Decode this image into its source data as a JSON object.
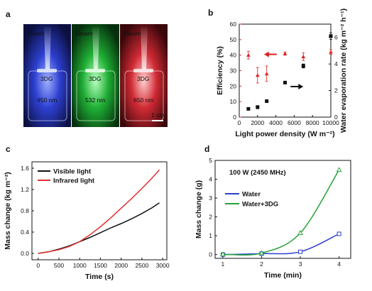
{
  "panels": {
    "a": {
      "label": "a",
      "colors": [
        "#2b3fd6",
        "#1fbf3a",
        "#e0303a"
      ],
      "photo_labels": [
        {
          "top": "Steam",
          "sample": "3DG",
          "wavelength": "450 nm"
        },
        {
          "top": "Steam",
          "sample": "3DG",
          "wavelength": "532 nm"
        },
        {
          "top": "Steam",
          "sample": "3DG",
          "wavelength": "650 nm"
        }
      ],
      "scale_bar": "1 cm"
    },
    "b": {
      "label": "b"
    },
    "c": {
      "label": "c"
    },
    "d": {
      "label": "d",
      "annotation": "100 W  (2450 MHz)"
    }
  },
  "chart_data": [
    {
      "panel": "b",
      "type": "scatter",
      "xlabel": "Light power density (W m⁻²)",
      "ylabel_left": "Efficiency (%)",
      "ylabel_right": "Water evaporation rate (kg m⁻² h⁻¹)",
      "xlim": [
        0,
        10000
      ],
      "xticks": [
        0,
        2000,
        4000,
        6000,
        8000,
        10000
      ],
      "ylim_left": [
        0,
        60
      ],
      "yticks_left": [
        0,
        10,
        20,
        30,
        40,
        50,
        60
      ],
      "ylim_right": [
        0,
        7
      ],
      "yticks_right": [
        0,
        2,
        4,
        6
      ],
      "left_color": "#e02020",
      "right_color": "#111111",
      "series": [
        {
          "axis": "left",
          "marker": "triangle",
          "color": "#e02020",
          "x": [
            1000,
            2000,
            3000,
            5000,
            7000,
            10000
          ],
          "y": [
            40,
            27,
            28,
            41,
            39,
            42
          ],
          "err": [
            2.5,
            5,
            5,
            1,
            2.5,
            1.5
          ]
        },
        {
          "axis": "right",
          "marker": "square",
          "color": "#111111",
          "x": [
            1000,
            2000,
            3000,
            5000,
            7000,
            10000
          ],
          "y": [
            0.62,
            0.75,
            1.2,
            2.6,
            3.85,
            6.1
          ],
          "err": [
            0.05,
            0.12,
            0.1,
            0.05,
            0.15,
            0.25
          ]
        }
      ],
      "arrows": [
        {
          "direction": "left",
          "color": "#e02020",
          "x_from": 4100,
          "x_to": 2700,
          "y": 40.5,
          "axis": "left"
        },
        {
          "direction": "right",
          "color": "#111111",
          "x_from": 5600,
          "x_to": 7000,
          "y": 2.3,
          "axis": "right"
        }
      ]
    },
    {
      "panel": "c",
      "type": "line",
      "xlabel": "Time (s)",
      "ylabel": "Mass change (kg m⁻²)",
      "xlim": [
        -150,
        3100
      ],
      "xticks": [
        0,
        500,
        1000,
        1500,
        2000,
        2500,
        3000
      ],
      "ylim": [
        -0.12,
        1.72
      ],
      "yticks": [
        0.0,
        0.4,
        0.8,
        1.2,
        1.6
      ],
      "legend": "top-left",
      "series": [
        {
          "name": "Visible light",
          "color": "#111111",
          "x": [
            0,
            250,
            500,
            750,
            1000,
            1250,
            1500,
            1750,
            2000,
            2250,
            2500,
            2750,
            2920
          ],
          "y": [
            0.0,
            0.03,
            0.08,
            0.14,
            0.22,
            0.3,
            0.39,
            0.48,
            0.56,
            0.65,
            0.75,
            0.86,
            0.95
          ]
        },
        {
          "name": "Infrared light",
          "color": "#e03030",
          "x": [
            0,
            250,
            500,
            750,
            1000,
            1250,
            1500,
            1750,
            2000,
            2250,
            2500,
            2750,
            2920
          ],
          "y": [
            0.0,
            0.03,
            0.07,
            0.13,
            0.22,
            0.35,
            0.5,
            0.67,
            0.85,
            1.03,
            1.22,
            1.42,
            1.57
          ]
        }
      ]
    },
    {
      "panel": "d",
      "type": "line",
      "xlabel": "Time (min)",
      "ylabel": "Mass change (g)",
      "xlim": [
        0.8,
        4.3
      ],
      "xticks": [
        1,
        2,
        3,
        4
      ],
      "ylim": [
        -0.2,
        5.0
      ],
      "yticks": [
        0,
        1,
        2,
        3,
        4,
        5
      ],
      "legend": "left",
      "series": [
        {
          "name": "Water",
          "color": "#2b3fcf",
          "marker": "square",
          "x": [
            1,
            2,
            3,
            4
          ],
          "y": [
            0.0,
            0.05,
            0.15,
            1.1
          ]
        },
        {
          "name": "Water+3DG",
          "color": "#27a33a",
          "marker": "triangle",
          "x": [
            1,
            2,
            3,
            4
          ],
          "y": [
            0.02,
            0.08,
            1.15,
            4.5
          ]
        }
      ]
    }
  ]
}
